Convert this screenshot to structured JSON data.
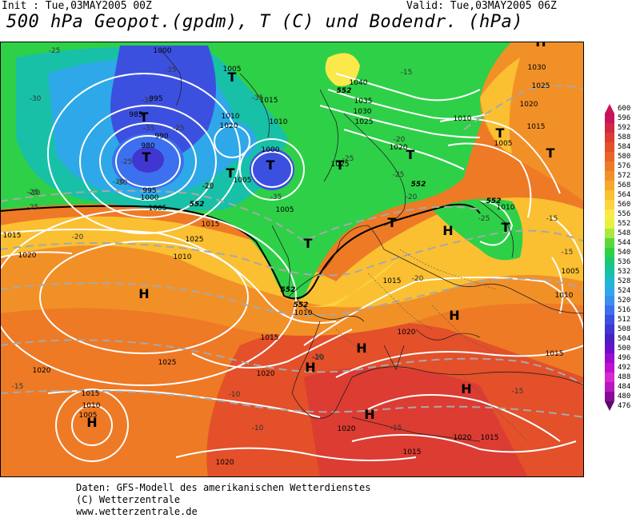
{
  "header": {
    "init": "Init : Tue,03MAY2005 00Z",
    "valid": "Valid: Tue,03MAY2005 06Z",
    "title": "500 hPa Geopot.(gpdm), T (C) und Bodendr. (hPa)"
  },
  "legend": {
    "top_cap": "600",
    "bottom_cap": "476",
    "entries": [
      {
        "label": "596",
        "color": "#c8145a"
      },
      {
        "label": "592",
        "color": "#d22846"
      },
      {
        "label": "588",
        "color": "#dc3c32"
      },
      {
        "label": "584",
        "color": "#e3502a"
      },
      {
        "label": "580",
        "color": "#e86428"
      },
      {
        "label": "576",
        "color": "#ee7a26"
      },
      {
        "label": "572",
        "color": "#f29028"
      },
      {
        "label": "568",
        "color": "#f6a82c"
      },
      {
        "label": "564",
        "color": "#fac032"
      },
      {
        "label": "560",
        "color": "#fcd43c"
      },
      {
        "label": "556",
        "color": "#fbe84a"
      },
      {
        "label": "552",
        "color": "#e8f03c"
      },
      {
        "label": "548",
        "color": "#a8e840"
      },
      {
        "label": "544",
        "color": "#5cd83c"
      },
      {
        "label": "540",
        "color": "#2ed048"
      },
      {
        "label": "536",
        "color": "#1cc878"
      },
      {
        "label": "532",
        "color": "#18c0a8"
      },
      {
        "label": "528",
        "color": "#20b8d0"
      },
      {
        "label": "524",
        "color": "#2ea8e8"
      },
      {
        "label": "520",
        "color": "#3a8ff0"
      },
      {
        "label": "516",
        "color": "#3c70ee"
      },
      {
        "label": "512",
        "color": "#3c50e0"
      },
      {
        "label": "508",
        "color": "#4036d0"
      },
      {
        "label": "504",
        "color": "#4a20c0"
      },
      {
        "label": "500",
        "color": "#6a10c8"
      },
      {
        "label": "496",
        "color": "#9a0cd0"
      },
      {
        "label": "492",
        "color": "#c010d0"
      },
      {
        "label": "488",
        "color": "#d828d0"
      },
      {
        "label": "484",
        "color": "#b818c0"
      },
      {
        "label": "480",
        "color": "#8a0a9a"
      }
    ]
  },
  "map": {
    "pressure_systems": [
      {
        "type": "T"
      },
      {
        "type": "T"
      },
      {
        "type": "T"
      },
      {
        "type": "T"
      },
      {
        "type": "T"
      },
      {
        "type": "T"
      },
      {
        "type": "T"
      },
      {
        "type": "T"
      },
      {
        "type": "T"
      },
      {
        "type": "T"
      },
      {
        "type": "T"
      },
      {
        "type": "T"
      },
      {
        "type": "H"
      },
      {
        "type": "H"
      },
      {
        "type": "H"
      },
      {
        "type": "H"
      },
      {
        "type": "H"
      },
      {
        "type": "H"
      },
      {
        "type": "H"
      },
      {
        "type": "H"
      },
      {
        "type": "H"
      }
    ],
    "isobar_labels": [
      "1000",
      "995",
      "985",
      "990",
      "980",
      "995",
      "1000",
      "1005",
      "1005",
      "1015",
      "1010",
      "1020",
      "1000",
      "1005",
      "1010",
      "1005",
      "1025",
      "1040",
      "1035",
      "1030",
      "1025",
      "1020",
      "1030",
      "1025",
      "1020",
      "1015",
      "1010",
      "1005",
      "1010",
      "1015",
      "1015",
      "1020",
      "1025",
      "1010",
      "1015",
      "1015",
      "1010",
      "1020",
      "1025",
      "1020",
      "1015",
      "1010",
      "1005",
      "1020",
      "1020",
      "1015",
      "1020",
      "1020",
      "1015",
      "1015",
      "1005",
      "1010"
    ],
    "temperature_labels": [
      "-25",
      "-35",
      "-30",
      "-30",
      "-25",
      "-35",
      "-25",
      "-25",
      "-30",
      "-25",
      "-30",
      "-30",
      "-25",
      "-35",
      "-35",
      "-20",
      "-25",
      "-20",
      "-25",
      "-15",
      "-20",
      "-15",
      "-15",
      "-20",
      "-10",
      "-15",
      "-10",
      "-10",
      "-15",
      "-20",
      "-25",
      "-20",
      "-15"
    ],
    "geopotential_labels": [
      "552",
      "552",
      "552",
      "552",
      "552",
      "552"
    ]
  },
  "footer": {
    "line1": "Daten: GFS-Modell des amerikanischen Wetterdienstes",
    "line2": "(C) Wetterzentrale",
    "line3": "www.wetterzentrale.de"
  }
}
